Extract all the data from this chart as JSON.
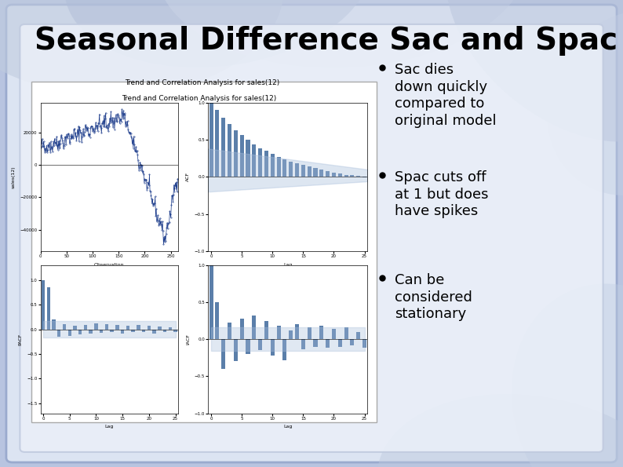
{
  "title": "Seasonal Difference Sac and Spac",
  "title_fontsize": 28,
  "title_fontweight": "bold",
  "title_color": "#000000",
  "bullet_points": [
    "Sac dies\ndown quickly\ncompared to\noriginal model",
    "Spac cuts off\nat 1 but does\nhave spikes",
    "Can be\nconsidered\nstationary"
  ],
  "bullet_fontsize": 13,
  "slide_bg": "#b8c4e0",
  "inner_bg": "#dde3f0",
  "chart_bg": "#ffffff",
  "bar_color": "#5b7faa",
  "confidence_color": "#a8bedb",
  "line_color": "#1a3a8a",
  "subplot_title": "Trend and Correlation Analysis for sales(12)",
  "subplot_title_fontsize": 6.5
}
